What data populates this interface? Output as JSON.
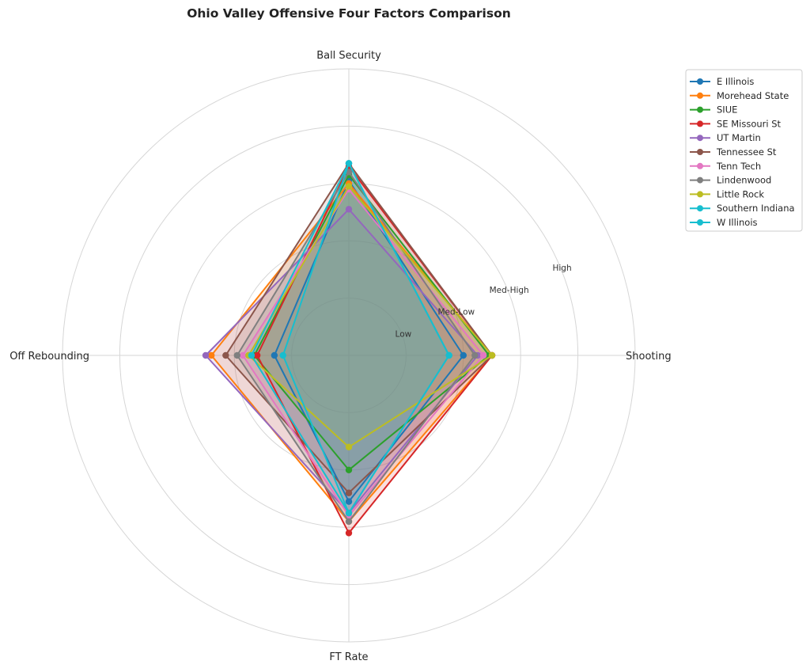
{
  "chart_data": {
    "type": "radar",
    "title": "Ohio Valley Offensive Four Factors Comparison",
    "axes": [
      "Shooting",
      "Ball Security",
      "Off Rebounding",
      "FT Rate"
    ],
    "rlim": [
      0,
      5
    ],
    "ring_labels": [
      {
        "r": 1,
        "label": "Low"
      },
      {
        "r": 2,
        "label": "Med-Low"
      },
      {
        "r": 3,
        "label": "Med-High"
      },
      {
        "r": 4,
        "label": "High"
      }
    ],
    "ring_count": 5,
    "grid": true,
    "legend_position": "upper-right",
    "series": [
      {
        "name": "E Illinois",
        "color": "#1f77b4",
        "values": [
          2.0,
          3.05,
          1.3,
          2.55
        ]
      },
      {
        "name": "Morehead State",
        "color": "#ff7f0e",
        "values": [
          2.5,
          3.0,
          2.4,
          2.9
        ]
      },
      {
        "name": "SIUE",
        "color": "#2ca02c",
        "values": [
          2.45,
          3.15,
          1.65,
          2.0
        ]
      },
      {
        "name": "SE Missouri St",
        "color": "#d62728",
        "values": [
          2.5,
          3.3,
          1.6,
          3.1
        ]
      },
      {
        "name": "UT Martin",
        "color": "#9467bd",
        "values": [
          2.25,
          2.55,
          2.5,
          2.75
        ]
      },
      {
        "name": "Tennessee St",
        "color": "#8c564b",
        "values": [
          2.5,
          3.35,
          2.15,
          2.4
        ]
      },
      {
        "name": "Tenn Tech",
        "color": "#e377c2",
        "values": [
          2.35,
          2.9,
          1.85,
          2.8
        ]
      },
      {
        "name": "Lindenwood",
        "color": "#7f7f7f",
        "values": [
          2.2,
          3.2,
          1.95,
          2.9
        ]
      },
      {
        "name": "Little Rock",
        "color": "#bcbd22",
        "values": [
          2.5,
          2.95,
          1.75,
          1.6
        ]
      },
      {
        "name": "Southern Indiana",
        "color": "#17becf",
        "values": [
          1.75,
          3.35,
          1.15,
          2.75
        ]
      },
      {
        "name": "W Illinois",
        "color": "#17becf",
        "values": [
          1.75,
          3.35,
          1.7,
          2.75
        ]
      }
    ]
  }
}
